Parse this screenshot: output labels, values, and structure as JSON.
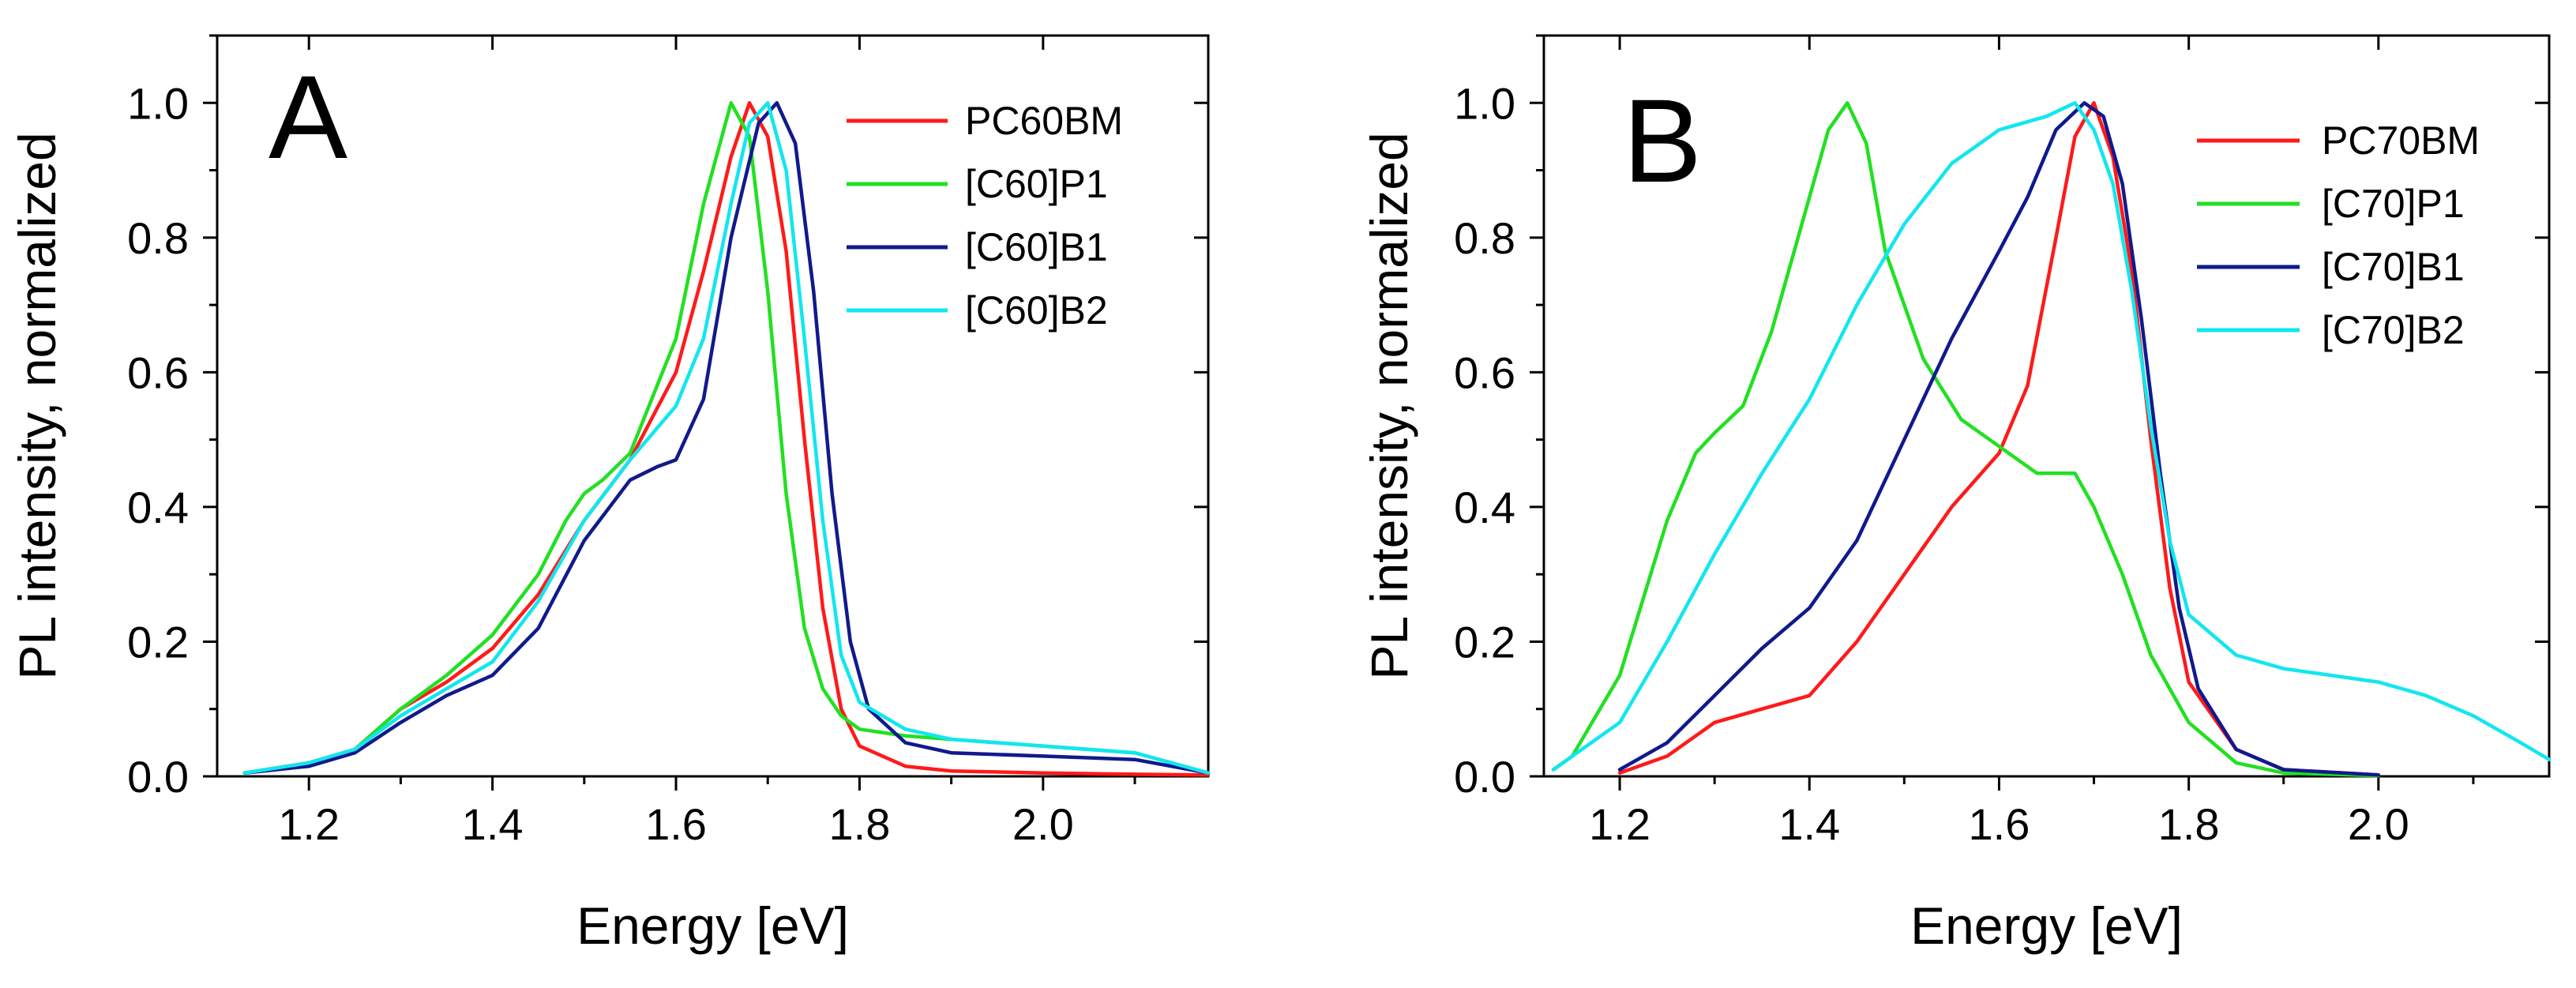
{
  "colors": {
    "red": "#ff1a1a",
    "green": "#22e022",
    "navy": "#101a8c",
    "cyan": "#12e6ef",
    "axis": "#000000"
  },
  "chart_data": [
    {
      "type": "line",
      "panel_label": "A",
      "xlabel": "Energy [eV]",
      "ylabel": "PL intensity, normalized",
      "xlim": [
        1.1,
        2.18
      ],
      "ylim": [
        0.0,
        1.1
      ],
      "xticks": [
        1.2,
        1.4,
        1.6,
        1.8,
        2.0
      ],
      "yticks": [
        0.0,
        0.2,
        0.4,
        0.6,
        0.8,
        1.0
      ],
      "xtick_labels": [
        "1.2",
        "1.4",
        "1.6",
        "1.8",
        "2.0"
      ],
      "ytick_labels": [
        "0.0",
        "0.2",
        "0.4",
        "0.6",
        "0.8",
        "1.0"
      ],
      "grid": false,
      "legend_position": "top-right",
      "series": [
        {
          "name": "PC60BM",
          "color": "red",
          "x": [
            1.13,
            1.2,
            1.25,
            1.3,
            1.35,
            1.4,
            1.45,
            1.5,
            1.55,
            1.6,
            1.63,
            1.66,
            1.68,
            1.7,
            1.72,
            1.74,
            1.76,
            1.78,
            1.8,
            1.85,
            1.9,
            2.0,
            2.1,
            2.18
          ],
          "y": [
            0.005,
            0.02,
            0.04,
            0.1,
            0.14,
            0.19,
            0.27,
            0.38,
            0.47,
            0.6,
            0.75,
            0.92,
            1.0,
            0.95,
            0.78,
            0.5,
            0.25,
            0.1,
            0.045,
            0.015,
            0.008,
            0.005,
            0.003,
            0.002
          ]
        },
        {
          "name": "[C60]P1",
          "color": "green",
          "x": [
            1.13,
            1.2,
            1.25,
            1.3,
            1.35,
            1.4,
            1.45,
            1.48,
            1.5,
            1.52,
            1.55,
            1.6,
            1.63,
            1.66,
            1.68,
            1.7,
            1.72,
            1.74,
            1.76,
            1.78,
            1.8,
            1.85,
            1.9,
            2.0,
            2.1,
            2.18
          ],
          "y": [
            0.005,
            0.02,
            0.04,
            0.1,
            0.15,
            0.21,
            0.3,
            0.38,
            0.42,
            0.44,
            0.48,
            0.65,
            0.85,
            1.0,
            0.95,
            0.72,
            0.42,
            0.22,
            0.13,
            0.09,
            0.07,
            0.06,
            0.055,
            0.045,
            0.035,
            0.005
          ]
        },
        {
          "name": "[C60]B1",
          "color": "navy",
          "x": [
            1.13,
            1.2,
            1.25,
            1.3,
            1.35,
            1.4,
            1.45,
            1.5,
            1.55,
            1.58,
            1.6,
            1.63,
            1.66,
            1.69,
            1.71,
            1.73,
            1.75,
            1.77,
            1.79,
            1.81,
            1.85,
            1.9,
            2.0,
            2.1,
            2.18
          ],
          "y": [
            0.005,
            0.015,
            0.035,
            0.08,
            0.12,
            0.15,
            0.22,
            0.35,
            0.44,
            0.46,
            0.47,
            0.56,
            0.8,
            0.97,
            1.0,
            0.94,
            0.72,
            0.42,
            0.2,
            0.1,
            0.05,
            0.035,
            0.03,
            0.025,
            0.005
          ]
        },
        {
          "name": "[C60]B2",
          "color": "cyan",
          "x": [
            1.13,
            1.2,
            1.25,
            1.3,
            1.35,
            1.4,
            1.45,
            1.5,
            1.55,
            1.6,
            1.63,
            1.66,
            1.68,
            1.7,
            1.72,
            1.74,
            1.76,
            1.78,
            1.8,
            1.85,
            1.9,
            2.0,
            2.1,
            2.18
          ],
          "y": [
            0.005,
            0.02,
            0.04,
            0.09,
            0.13,
            0.17,
            0.26,
            0.38,
            0.47,
            0.55,
            0.65,
            0.85,
            0.97,
            1.0,
            0.9,
            0.65,
            0.38,
            0.18,
            0.11,
            0.07,
            0.055,
            0.045,
            0.035,
            0.005
          ]
        }
      ]
    },
    {
      "type": "line",
      "panel_label": "B",
      "xlabel": "Energy [eV]",
      "ylabel": "PL intensity, normalized",
      "xlim": [
        1.12,
        2.18
      ],
      "ylim": [
        0.0,
        1.1
      ],
      "xticks": [
        1.2,
        1.4,
        1.6,
        1.8,
        2.0
      ],
      "yticks": [
        0.0,
        0.2,
        0.4,
        0.6,
        0.8,
        1.0
      ],
      "xtick_labels": [
        "1.2",
        "1.4",
        "1.6",
        "1.8",
        "2.0"
      ],
      "ytick_labels": [
        "0.0",
        "0.2",
        "0.4",
        "0.6",
        "0.8",
        "1.0"
      ],
      "grid": false,
      "legend_position": "top-right",
      "series": [
        {
          "name": "PC70BM",
          "color": "red",
          "x": [
            1.2,
            1.25,
            1.3,
            1.35,
            1.4,
            1.45,
            1.5,
            1.55,
            1.6,
            1.63,
            1.66,
            1.68,
            1.7,
            1.72,
            1.74,
            1.76,
            1.78,
            1.8,
            1.85,
            1.9,
            2.0
          ],
          "y": [
            0.005,
            0.03,
            0.08,
            0.1,
            0.12,
            0.2,
            0.3,
            0.4,
            0.48,
            0.58,
            0.8,
            0.95,
            1.0,
            0.92,
            0.75,
            0.5,
            0.28,
            0.14,
            0.04,
            0.01,
            0.002
          ]
        },
        {
          "name": "[C70]P1",
          "color": "green",
          "x": [
            1.13,
            1.15,
            1.2,
            1.25,
            1.28,
            1.3,
            1.33,
            1.36,
            1.4,
            1.42,
            1.44,
            1.46,
            1.48,
            1.52,
            1.56,
            1.6,
            1.64,
            1.68,
            1.7,
            1.73,
            1.76,
            1.8,
            1.85,
            1.9,
            2.0
          ],
          "y": [
            0.01,
            0.03,
            0.15,
            0.38,
            0.48,
            0.51,
            0.55,
            0.66,
            0.86,
            0.96,
            1.0,
            0.94,
            0.78,
            0.62,
            0.53,
            0.49,
            0.45,
            0.45,
            0.4,
            0.3,
            0.18,
            0.08,
            0.02,
            0.005,
            0.001
          ]
        },
        {
          "name": "[C70]B1",
          "color": "navy",
          "x": [
            1.2,
            1.25,
            1.3,
            1.35,
            1.4,
            1.45,
            1.5,
            1.55,
            1.6,
            1.63,
            1.66,
            1.69,
            1.71,
            1.73,
            1.75,
            1.77,
            1.79,
            1.81,
            1.85,
            1.9,
            2.0
          ],
          "y": [
            0.01,
            0.05,
            0.12,
            0.19,
            0.25,
            0.35,
            0.5,
            0.65,
            0.78,
            0.86,
            0.96,
            1.0,
            0.98,
            0.88,
            0.68,
            0.45,
            0.25,
            0.13,
            0.04,
            0.01,
            0.002
          ]
        },
        {
          "name": "[C70]B2",
          "color": "cyan",
          "x": [
            1.13,
            1.2,
            1.25,
            1.3,
            1.35,
            1.4,
            1.45,
            1.5,
            1.55,
            1.6,
            1.65,
            1.68,
            1.7,
            1.72,
            1.74,
            1.76,
            1.78,
            1.8,
            1.85,
            1.9,
            1.95,
            2.0,
            2.05,
            2.1,
            2.15,
            2.18
          ],
          "y": [
            0.01,
            0.08,
            0.2,
            0.33,
            0.45,
            0.56,
            0.7,
            0.82,
            0.91,
            0.96,
            0.98,
            1.0,
            0.96,
            0.88,
            0.72,
            0.52,
            0.35,
            0.24,
            0.18,
            0.16,
            0.15,
            0.14,
            0.12,
            0.09,
            0.05,
            0.025
          ]
        }
      ]
    }
  ]
}
